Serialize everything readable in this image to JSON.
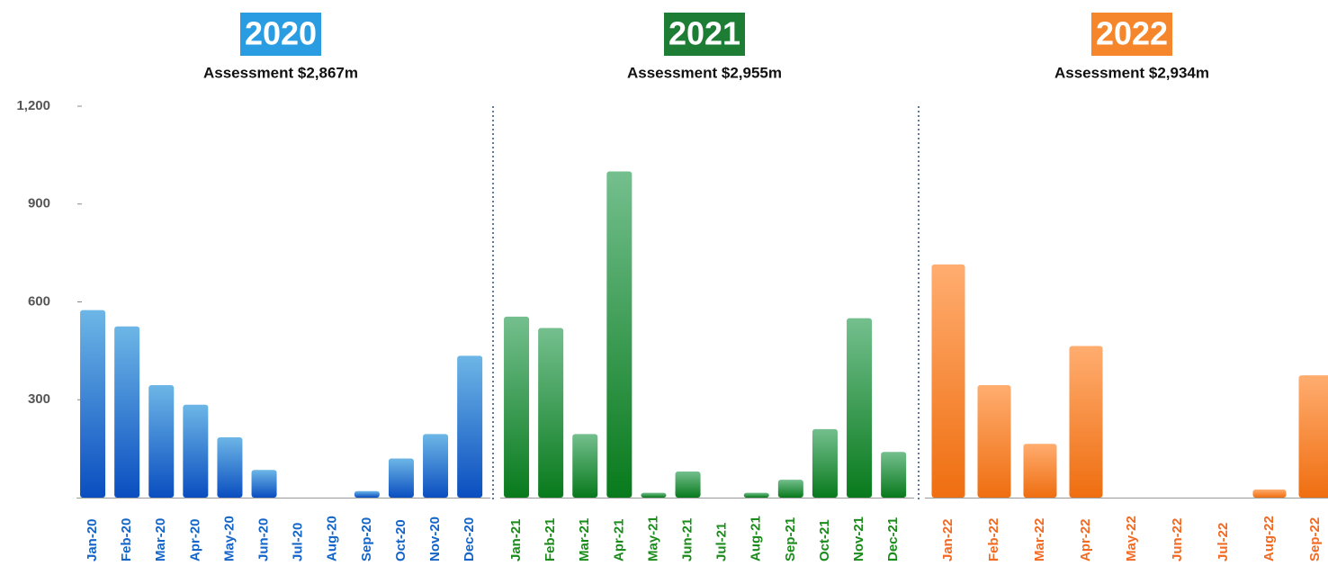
{
  "chart_data": [
    {
      "type": "bar",
      "title": "2020",
      "subtitle": "Assessment $2,867m",
      "categories": [
        "Jan-20",
        "Feb-20",
        "Mar-20",
        "Apr-20",
        "May-20",
        "Jun-20",
        "Jul-20",
        "Aug-20",
        "Sep-20",
        "Oct-20",
        "Nov-20",
        "Dec-20"
      ],
      "values": [
        575,
        525,
        345,
        285,
        185,
        85,
        0,
        0,
        20,
        120,
        195,
        435
      ],
      "color": [
        "#6db6e6",
        "#0a4ec0"
      ],
      "label_color": "#1565c8",
      "title_color": "#2a9ce2",
      "ylim": [
        0,
        1200
      ],
      "yticks": [
        300,
        600,
        900,
        {
          "value": 1200,
          "label": "1,200"
        }
      ]
    },
    {
      "type": "bar",
      "title": "2021",
      "subtitle": "Assessment $2,955m",
      "categories": [
        "Jan-21",
        "Feb-21",
        "Mar-21",
        "Apr-21",
        "May-21",
        "Jun-21",
        "Jul-21",
        "Aug-21",
        "Sep-21",
        "Oct-21",
        "Nov-21",
        "Dec-21"
      ],
      "values": [
        555,
        520,
        195,
        1000,
        15,
        80,
        0,
        15,
        55,
        210,
        550,
        140
      ],
      "color": [
        "#74bf8e",
        "#087a1c"
      ],
      "label_color": "#1a8c1a",
      "title_color": "#1d7d34",
      "ylim": [
        0,
        1200
      ]
    },
    {
      "type": "bar",
      "title": "2022",
      "subtitle": "Assessment $2,934m",
      "categories": [
        "Jan-22",
        "Feb-22",
        "Mar-22",
        "Apr-22",
        "May-22",
        "Jun-22",
        "Jul-22",
        "Aug-22",
        "Sep-22"
      ],
      "values": [
        715,
        345,
        165,
        465,
        0,
        0,
        0,
        25,
        375
      ],
      "color": [
        "#ffad70",
        "#ef6e10"
      ],
      "label_color": "#f26a22",
      "title_color": "#f5862c",
      "ylim": [
        0,
        1200
      ]
    }
  ]
}
